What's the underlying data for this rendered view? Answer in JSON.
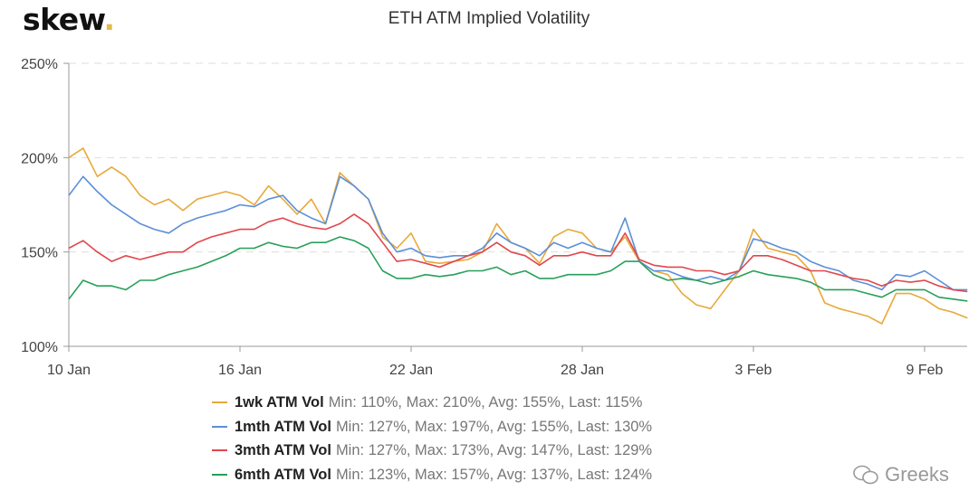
{
  "header": {
    "logo": "skew",
    "title": "ETH ATM Implied Volatility"
  },
  "watermark": "Greeks",
  "chart_data": {
    "type": "line",
    "title": "ETH ATM Implied Volatility",
    "ylim": [
      100,
      250
    ],
    "yticks": [
      "100%",
      "150%",
      "200%",
      "250%"
    ],
    "ytick_values": [
      100,
      150,
      200,
      250
    ],
    "xticks": [
      "10 Jan",
      "16 Jan",
      "22 Jan",
      "28 Jan",
      "3 Feb",
      "9 Feb"
    ],
    "xtick_dates": [
      "2020-01-10",
      "2020-01-16",
      "2020-01-22",
      "2020-01-28",
      "2020-02-03",
      "2020-02-09"
    ],
    "grid": "horizontal dashed",
    "legend_position": "bottom",
    "x": [
      "2020-01-10T00",
      "2020-01-10T12",
      "2020-01-11T00",
      "2020-01-11T12",
      "2020-01-12T00",
      "2020-01-12T12",
      "2020-01-13T00",
      "2020-01-13T12",
      "2020-01-14T00",
      "2020-01-14T12",
      "2020-01-15T00",
      "2020-01-15T12",
      "2020-01-16T00",
      "2020-01-16T12",
      "2020-01-17T00",
      "2020-01-17T12",
      "2020-01-18T00",
      "2020-01-18T12",
      "2020-01-19T00",
      "2020-01-19T12",
      "2020-01-20T00",
      "2020-01-20T12",
      "2020-01-21T00",
      "2020-01-21T12",
      "2020-01-22T00",
      "2020-01-22T12",
      "2020-01-23T00",
      "2020-01-23T12",
      "2020-01-24T00",
      "2020-01-24T12",
      "2020-01-25T00",
      "2020-01-25T12",
      "2020-01-26T00",
      "2020-01-26T12",
      "2020-01-27T00",
      "2020-01-27T12",
      "2020-01-28T00",
      "2020-01-28T12",
      "2020-01-29T00",
      "2020-01-29T12",
      "2020-01-30T00",
      "2020-01-30T12",
      "2020-01-31T00",
      "2020-01-31T12",
      "2020-02-01T00",
      "2020-02-01T12",
      "2020-02-02T00",
      "2020-02-02T12",
      "2020-02-03T00",
      "2020-02-03T12",
      "2020-02-04T00",
      "2020-02-04T12",
      "2020-02-05T00",
      "2020-02-05T12",
      "2020-02-06T00",
      "2020-02-06T12",
      "2020-02-07T00",
      "2020-02-07T12",
      "2020-02-08T00",
      "2020-02-08T12",
      "2020-02-09T00",
      "2020-02-09T12",
      "2020-02-10T00",
      "2020-02-10T12"
    ],
    "series": [
      {
        "name": "1wk ATM Vol",
        "stats": "Min: 110%, Max: 210%, Avg: 155%, Last: 115%",
        "color": "#e8a93a",
        "values": [
          200,
          205,
          190,
          195,
          190,
          180,
          175,
          178,
          172,
          178,
          180,
          182,
          180,
          175,
          185,
          178,
          170,
          178,
          165,
          192,
          185,
          178,
          158,
          152,
          160,
          145,
          144,
          145,
          146,
          150,
          165,
          155,
          152,
          144,
          158,
          162,
          160,
          152,
          150,
          158,
          145,
          140,
          138,
          128,
          122,
          120,
          130,
          140,
          162,
          152,
          150,
          148,
          140,
          123,
          120,
          118,
          116,
          112,
          128,
          128,
          125,
          120,
          118,
          115
        ]
      },
      {
        "name": "1mth ATM Vol",
        "stats": "Min: 127%, Max: 197%, Avg: 155%, Last: 130%",
        "color": "#5b8fd9",
        "values": [
          180,
          190,
          182,
          175,
          170,
          165,
          162,
          160,
          165,
          168,
          170,
          172,
          175,
          174,
          178,
          180,
          172,
          168,
          165,
          190,
          185,
          178,
          160,
          150,
          152,
          148,
          147,
          148,
          148,
          152,
          160,
          155,
          152,
          148,
          155,
          152,
          155,
          152,
          150,
          168,
          145,
          140,
          140,
          137,
          135,
          137,
          135,
          140,
          157,
          155,
          152,
          150,
          145,
          142,
          140,
          135,
          133,
          130,
          138,
          137,
          140,
          135,
          130,
          130
        ]
      },
      {
        "name": "3mth ATM Vol",
        "stats": "Min: 127%, Max: 173%, Avg: 147%, Last: 129%",
        "color": "#e0474c",
        "values": [
          152,
          156,
          150,
          145,
          148,
          146,
          148,
          150,
          150,
          155,
          158,
          160,
          162,
          162,
          166,
          168,
          165,
          163,
          162,
          165,
          170,
          165,
          155,
          145,
          146,
          144,
          142,
          145,
          148,
          150,
          155,
          150,
          148,
          143,
          148,
          148,
          150,
          148,
          148,
          160,
          146,
          143,
          142,
          142,
          140,
          140,
          138,
          140,
          148,
          148,
          146,
          143,
          140,
          140,
          138,
          136,
          135,
          132,
          135,
          134,
          135,
          132,
          130,
          129
        ]
      },
      {
        "name": "6mth ATM Vol",
        "stats": "Min: 123%, Max: 157%, Avg: 137%, Last: 124%",
        "color": "#27a05a",
        "values": [
          125,
          135,
          132,
          132,
          130,
          135,
          135,
          138,
          140,
          142,
          145,
          148,
          152,
          152,
          155,
          153,
          152,
          155,
          155,
          158,
          156,
          152,
          140,
          136,
          136,
          138,
          137,
          138,
          140,
          140,
          142,
          138,
          140,
          136,
          136,
          138,
          138,
          138,
          140,
          145,
          145,
          138,
          135,
          136,
          135,
          133,
          135,
          137,
          140,
          138,
          137,
          136,
          134,
          130,
          130,
          130,
          128,
          126,
          130,
          130,
          130,
          126,
          125,
          124
        ]
      }
    ]
  }
}
